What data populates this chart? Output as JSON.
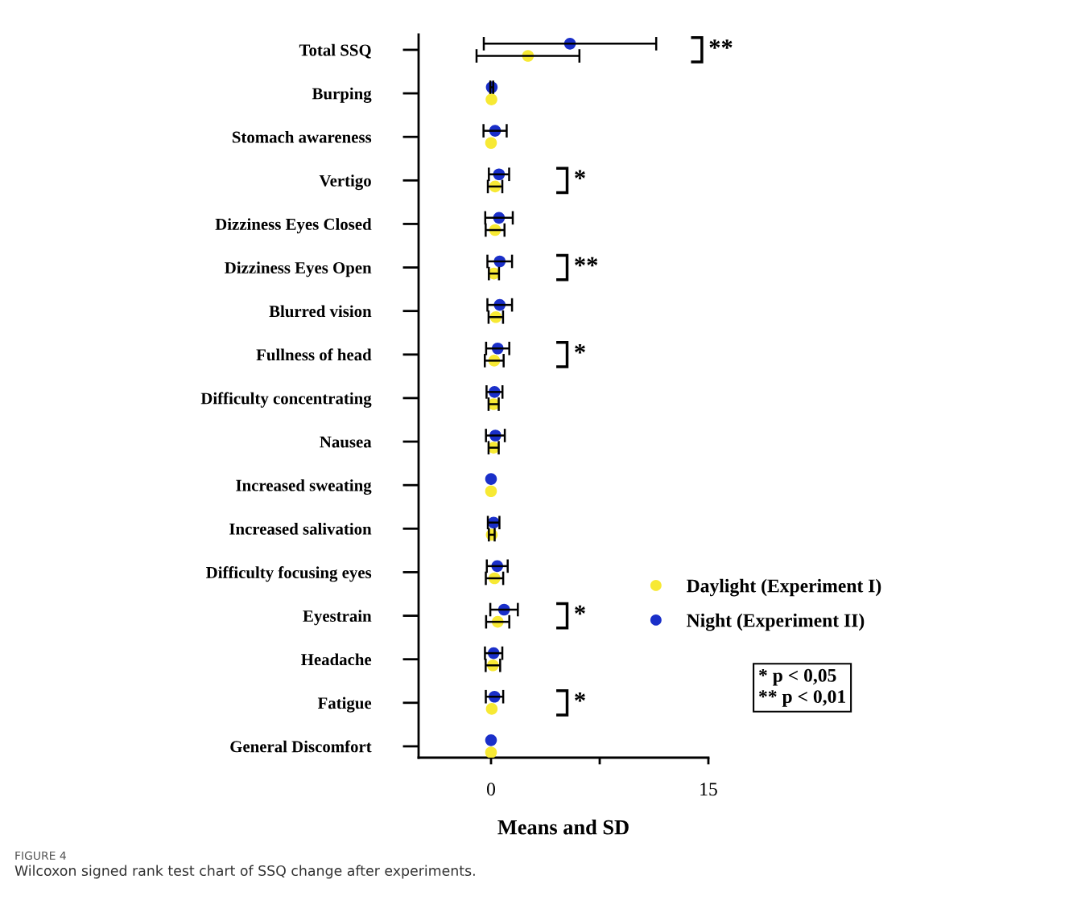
{
  "chart_data": {
    "type": "scatter",
    "orientation": "horizontal",
    "xlabel": "Means and SD",
    "categories": [
      "Total SSQ",
      "Burping",
      "Stomach awareness",
      "Vertigo",
      "Dizziness Eyes Closed",
      "Dizziness Eyes Open",
      "Blurred vision",
      "Fullness of head",
      "Difficulty concentrating",
      "Nausea",
      "Increased sweating",
      "Increased salivation",
      "Difficulty focusing eyes",
      "Eyestrain",
      "Headache",
      "Fatigue",
      "General Discomfort"
    ],
    "series": [
      {
        "name": "Daylight (Experiment I)",
        "color": "#f7e934",
        "values": [
          2.55,
          0.03,
          0.0,
          0.28,
          0.28,
          0.2,
          0.33,
          0.22,
          0.18,
          0.18,
          0.0,
          0.05,
          0.24,
          0.46,
          0.13,
          0.05,
          0.0
        ],
        "errors": [
          3.55,
          null,
          null,
          0.5,
          0.65,
          0.35,
          0.5,
          0.65,
          0.35,
          0.35,
          null,
          0.2,
          0.6,
          0.8,
          0.5,
          null,
          null
        ]
      },
      {
        "name": "Night (Experiment II)",
        "color": "#1a2fc9",
        "values": [
          5.45,
          0.05,
          0.28,
          0.55,
          0.55,
          0.6,
          0.6,
          0.46,
          0.24,
          0.3,
          0.0,
          0.18,
          0.43,
          0.9,
          0.18,
          0.24,
          0.0
        ],
        "errors": [
          5.95,
          0.1,
          0.8,
          0.7,
          0.95,
          0.85,
          0.85,
          0.8,
          0.55,
          0.65,
          null,
          0.4,
          0.72,
          0.95,
          0.6,
          0.6,
          null
        ]
      }
    ],
    "xlim": [
      -5,
      15
    ],
    "xticks": [
      0,
      {
        "value": 7.5,
        "label": null
      },
      15
    ],
    "marker": "circle",
    "legend": "right",
    "grid": false,
    "annotations": [
      "**",
      "*",
      "**",
      "*",
      "*",
      "*",
      "* p < 0,05\n** p < 0,01",
      "FIGURE 4",
      "Wilcoxon signed rank test chart of SSQ change after experiments."
    ]
  }
}
